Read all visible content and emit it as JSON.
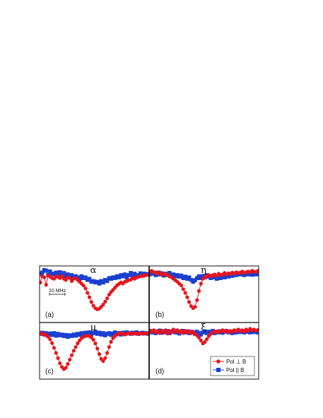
{
  "chart_data": {
    "type": "line",
    "legend": {
      "placement": "bottom-right of panel (d)",
      "entries": [
        {
          "label": "Pol ⊥ B",
          "marker": "circle",
          "color": "#e8141c"
        },
        {
          "label": "Pol || B",
          "marker": "square",
          "color": "#1a3fd1"
        }
      ]
    },
    "scale_bar": {
      "label": "10 MHz",
      "panel": "a"
    },
    "grid": false,
    "axes_ticks": false,
    "ylim": [
      -1.1,
      0.25
    ],
    "panels": [
      {
        "id": "a",
        "letter": "(a)",
        "title": "α",
        "series": [
          {
            "name": "Pol ⊥ B",
            "x": [
              0,
              1,
              2,
              3,
              4,
              5,
              6,
              7,
              8,
              9,
              10,
              11,
              12,
              13,
              14,
              15,
              16,
              17,
              18,
              19,
              20,
              21,
              22,
              23,
              24,
              25,
              26,
              27,
              28,
              29,
              30,
              31,
              32,
              33,
              34,
              35,
              36,
              37,
              38,
              39,
              40,
              41,
              42,
              43,
              44,
              45,
              46,
              47,
              48,
              49,
              50,
              51,
              52,
              53,
              54,
              55
            ],
            "y": [
              -0.22,
              -0.05,
              -0.08,
              -0.28,
              -0.03,
              -0.06,
              -0.1,
              -0.12,
              -0.05,
              -0.07,
              -0.1,
              -0.05,
              -0.12,
              -0.15,
              -0.08,
              -0.1,
              -0.18,
              -0.12,
              -0.1,
              -0.15,
              -0.2,
              -0.25,
              -0.3,
              -0.38,
              -0.5,
              -0.62,
              -0.75,
              -0.85,
              -0.92,
              -0.95,
              -0.93,
              -0.88,
              -0.82,
              -0.74,
              -0.65,
              -0.55,
              -0.48,
              -0.42,
              -0.36,
              -0.3,
              -0.26,
              -0.22,
              -0.25,
              -0.2,
              -0.18,
              -0.16,
              -0.14,
              -0.1,
              -0.12,
              -0.08,
              -0.06,
              -0.05,
              -0.04,
              -0.03,
              -0.02,
              -0.01
            ]
          },
          {
            "name": "Pol || B",
            "x": [
              0,
              1,
              2,
              3,
              4,
              5,
              6,
              7,
              8,
              9,
              10,
              11,
              12,
              13,
              14,
              15,
              16,
              17,
              18,
              19,
              20,
              21,
              22,
              23,
              24,
              25,
              26,
              27,
              28,
              29,
              30,
              31,
              32,
              33,
              34,
              35,
              36,
              37,
              38,
              39,
              40,
              41,
              42,
              43,
              44,
              45,
              46,
              47,
              48,
              49,
              50,
              51,
              52,
              53,
              54,
              55
            ],
            "y": [
              0.02,
              0.05,
              0.12,
              0.1,
              -0.02,
              0.08,
              0.02,
              0.0,
              0.05,
              -0.02,
              0.06,
              -0.03,
              0.04,
              -0.05,
              0.0,
              -0.08,
              -0.02,
              -0.1,
              -0.05,
              -0.08,
              -0.12,
              -0.05,
              -0.1,
              -0.08,
              -0.15,
              -0.12,
              -0.2,
              -0.18,
              -0.22,
              -0.2,
              -0.25,
              -0.18,
              -0.22,
              -0.15,
              -0.18,
              -0.1,
              -0.12,
              -0.08,
              -0.1,
              -0.05,
              -0.08,
              -0.02,
              -0.05,
              0.0,
              -0.08,
              -0.02,
              0.04,
              -0.04,
              0.02,
              -0.06,
              -0.02,
              0.03,
              -0.03,
              0.02,
              0.0,
              0.01
            ]
          }
        ]
      },
      {
        "id": "b",
        "letter": "(b)",
        "title": "η",
        "series": [
          {
            "name": "Pol ⊥ B",
            "x": [
              0,
              1,
              2,
              3,
              4,
              5,
              6,
              7,
              8,
              9,
              10,
              11,
              12,
              13,
              14,
              15,
              16,
              17,
              18,
              19,
              20,
              21,
              22,
              23,
              24,
              25,
              26,
              27,
              28,
              29,
              30,
              31,
              32,
              33,
              34,
              35,
              36,
              37,
              38,
              39,
              40,
              41,
              42,
              43,
              44,
              45,
              46,
              47,
              48,
              49,
              50,
              51,
              52,
              53,
              54,
              55
            ],
            "y": [
              0.08,
              0.1,
              0.06,
              0.05,
              0.02,
              0.06,
              0.0,
              0.02,
              -0.02,
              0.0,
              -0.05,
              -0.08,
              -0.12,
              -0.16,
              -0.2,
              -0.25,
              -0.3,
              -0.4,
              -0.5,
              -0.62,
              -0.75,
              -0.86,
              -0.92,
              -0.88,
              -0.7,
              -0.45,
              -0.25,
              -0.12,
              -0.08,
              -0.04,
              -0.02,
              -0.05,
              -0.02,
              0.0,
              -0.04,
              0.02,
              -0.02,
              0.0,
              0.04,
              0.0,
              0.03,
              0.02,
              0.05,
              0.02,
              0.06,
              0.04,
              0.05,
              0.08,
              0.04,
              0.06,
              0.08,
              0.06,
              0.1,
              0.08,
              0.06,
              0.1
            ]
          },
          {
            "name": "Pol || B",
            "x": [
              0,
              1,
              2,
              3,
              4,
              5,
              6,
              7,
              8,
              9,
              10,
              11,
              12,
              13,
              14,
              15,
              16,
              17,
              18,
              19,
              20,
              21,
              22,
              23,
              24,
              25,
              26,
              27,
              28,
              29,
              30,
              31,
              32,
              33,
              34,
              35,
              36,
              37,
              38,
              39,
              40,
              41,
              42,
              43,
              44,
              45,
              46,
              47,
              48,
              49,
              50,
              51,
              52,
              53,
              54,
              55
            ],
            "y": [
              0.0,
              0.04,
              0.02,
              -0.02,
              0.05,
              0.0,
              0.03,
              -0.03,
              0.02,
              -0.02,
              0.04,
              -0.04,
              0.0,
              -0.05,
              -0.02,
              -0.06,
              -0.03,
              -0.1,
              -0.06,
              -0.12,
              -0.08,
              -0.15,
              -0.2,
              -0.16,
              -0.1,
              -0.05,
              -0.1,
              -0.04,
              -0.08,
              -0.02,
              -0.06,
              -0.1,
              -0.04,
              -0.08,
              -0.12,
              -0.06,
              -0.1,
              -0.04,
              -0.08,
              -0.02,
              -0.06,
              0.0,
              -0.04,
              0.02,
              -0.02,
              0.03,
              0.0,
              0.04,
              -0.02,
              0.02,
              0.0,
              0.03,
              -0.01,
              0.02,
              0.0,
              0.01
            ]
          }
        ]
      },
      {
        "id": "c",
        "letter": "(c)",
        "title": "μ",
        "series": [
          {
            "name": "Pol ⊥ B",
            "x": [
              0,
              1,
              2,
              3,
              4,
              5,
              6,
              7,
              8,
              9,
              10,
              11,
              12,
              13,
              14,
              15,
              16,
              17,
              18,
              19,
              20,
              21,
              22,
              23,
              24,
              25,
              26,
              27,
              28,
              29,
              30,
              31,
              32,
              33,
              34,
              35,
              36,
              37,
              38,
              39,
              40,
              41,
              42,
              43,
              44,
              45,
              46,
              47,
              48,
              49,
              50,
              51,
              52,
              53,
              54,
              55
            ],
            "y": [
              0.02,
              0.0,
              -0.02,
              -0.04,
              -0.08,
              -0.15,
              -0.25,
              -0.38,
              -0.52,
              -0.66,
              -0.8,
              -0.9,
              -0.96,
              -0.92,
              -0.82,
              -0.7,
              -0.58,
              -0.46,
              -0.36,
              -0.26,
              -0.18,
              -0.12,
              -0.08,
              -0.06,
              -0.05,
              -0.06,
              -0.1,
              -0.16,
              -0.26,
              -0.4,
              -0.55,
              -0.68,
              -0.74,
              -0.66,
              -0.52,
              -0.36,
              -0.22,
              -0.12,
              -0.06,
              -0.02,
              0.0,
              0.02,
              0.0,
              -0.02,
              0.0,
              0.02,
              0.01,
              0.0,
              0.02,
              0.0,
              0.01,
              0.02,
              0.0,
              0.01,
              0.02,
              0.0
            ]
          },
          {
            "name": "Pol || B",
            "x": [
              0,
              1,
              2,
              3,
              4,
              5,
              6,
              7,
              8,
              9,
              10,
              11,
              12,
              13,
              14,
              15,
              16,
              17,
              18,
              19,
              20,
              21,
              22,
              23,
              24,
              25,
              26,
              27,
              28,
              29,
              30,
              31,
              32,
              33,
              34,
              35,
              36,
              37,
              38,
              39,
              40,
              41,
              42,
              43,
              44,
              45,
              46,
              47,
              48,
              49,
              50,
              51,
              52,
              53,
              54,
              55
            ],
            "y": [
              0.0,
              0.03,
              -0.02,
              0.02,
              -0.04,
              0.01,
              -0.03,
              0.02,
              -0.05,
              0.0,
              -0.04,
              -0.02,
              -0.06,
              -0.03,
              -0.08,
              -0.04,
              -0.06,
              -0.02,
              -0.05,
              0.0,
              -0.03,
              0.02,
              -0.02,
              0.03,
              0.0,
              0.04,
              -0.02,
              0.02,
              0.06,
              0.0,
              0.03,
              -0.02,
              0.02,
              -0.04,
              0.0,
              0.02,
              -0.03,
              0.01,
              0.04,
              0.0,
              0.02,
              -0.02,
              0.03,
              0.0,
              0.04,
              0.02,
              0.0,
              0.03,
              0.01,
              0.04,
              0.0,
              0.02,
              0.03,
              0.01,
              0.02,
              0.0
            ]
          }
        ]
      },
      {
        "id": "d",
        "letter": "(d)",
        "title": "ξ",
        "series": [
          {
            "name": "Pol ⊥ B",
            "x": [
              0,
              1,
              2,
              3,
              4,
              5,
              6,
              7,
              8,
              9,
              10,
              11,
              12,
              13,
              14,
              15,
              16,
              17,
              18,
              19,
              20,
              21,
              22,
              23,
              24,
              25,
              26,
              27,
              28,
              29,
              30,
              31,
              32,
              33,
              34,
              35,
              36,
              37,
              38,
              39,
              40,
              41,
              42,
              43,
              44,
              45,
              46,
              47,
              48,
              49,
              50,
              51,
              52,
              53,
              54,
              55
            ],
            "y": [
              0.05,
              0.02,
              0.06,
              0.0,
              0.04,
              -0.02,
              0.05,
              0.0,
              0.06,
              -0.03,
              0.04,
              0.0,
              0.08,
              0.02,
              0.06,
              0.0,
              0.05,
              -0.02,
              0.04,
              0.0,
              0.03,
              -0.02,
              0.02,
              -0.04,
              -0.08,
              -0.14,
              -0.22,
              -0.3,
              -0.26,
              -0.18,
              -0.1,
              -0.04,
              0.0,
              0.03,
              0.0,
              0.04,
              0.02,
              0.06,
              0.02,
              0.05,
              0.0,
              0.04,
              0.02,
              0.06,
              0.03,
              0.08,
              0.04,
              0.06,
              0.02,
              0.08,
              0.04,
              0.1,
              0.06,
              0.08,
              0.05,
              0.07
            ]
          },
          {
            "name": "Pol || B",
            "x": [
              0,
              1,
              2,
              3,
              4,
              5,
              6,
              7,
              8,
              9,
              10,
              11,
              12,
              13,
              14,
              15,
              16,
              17,
              18,
              19,
              20,
              21,
              22,
              23,
              24,
              25,
              26,
              27,
              28,
              29,
              30,
              31,
              32,
              33,
              34,
              35,
              36,
              37,
              38,
              39,
              40,
              41,
              42,
              43,
              44,
              45,
              46,
              47,
              48,
              49,
              50,
              51,
              52,
              53,
              54,
              55
            ],
            "y": [
              0.04,
              0.0,
              0.03,
              -0.02,
              0.02,
              0.05,
              -0.01,
              0.03,
              0.0,
              0.04,
              -0.02,
              0.02,
              0.05,
              0.0,
              0.03,
              -0.03,
              0.02,
              0.04,
              0.0,
              0.03,
              -0.02,
              0.02,
              0.0,
              -0.04,
              0.02,
              -0.02,
              -0.06,
              0.0,
              0.03,
              -0.02,
              0.02,
              0.0,
              0.04,
              -0.02,
              0.02,
              0.0,
              0.03,
              -0.01,
              0.02,
              0.04,
              0.0,
              0.02,
              -0.02,
              0.03,
              0.0,
              0.04,
              0.01,
              0.03,
              0.0,
              0.02,
              0.04,
              0.0,
              0.03,
              0.01,
              0.02,
              0.0
            ]
          }
        ]
      }
    ]
  }
}
